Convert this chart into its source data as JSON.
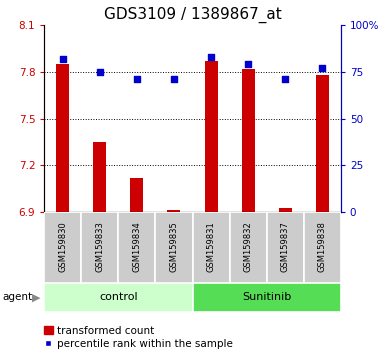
{
  "title": "GDS3109 / 1389867_at",
  "samples": [
    "GSM159830",
    "GSM159833",
    "GSM159834",
    "GSM159835",
    "GSM159831",
    "GSM159832",
    "GSM159837",
    "GSM159838"
  ],
  "transformed_count": [
    7.85,
    7.35,
    7.12,
    6.915,
    7.87,
    7.82,
    6.925,
    7.78
  ],
  "percentile_rank": [
    82,
    75,
    71,
    71,
    83,
    79,
    71,
    77
  ],
  "bar_color": "#cc0000",
  "dot_color": "#0000cc",
  "bar_bottom": 6.9,
  "ylim_left": [
    6.9,
    8.1
  ],
  "ylim_right": [
    0,
    100
  ],
  "yticks_left": [
    6.9,
    7.2,
    7.5,
    7.8,
    8.1
  ],
  "ytick_labels_left": [
    "6.9",
    "7.2",
    "7.5",
    "7.8",
    "8.1"
  ],
  "yticks_right": [
    0,
    25,
    50,
    75,
    100
  ],
  "ytick_labels_right": [
    "0",
    "25",
    "50",
    "75",
    "100%"
  ],
  "hlines": [
    7.2,
    7.5,
    7.8
  ],
  "groups": [
    {
      "label": "control",
      "indices": [
        0,
        1,
        2,
        3
      ],
      "color": "#ccffcc"
    },
    {
      "label": "Sunitinib",
      "indices": [
        4,
        5,
        6,
        7
      ],
      "color": "#55dd55"
    }
  ],
  "group_row_label": "agent",
  "tick_bg_color": "#cccccc",
  "legend_bar_label": "transformed count",
  "legend_dot_label": "percentile rank within the sample",
  "title_fontsize": 11,
  "tick_fontsize": 7.5,
  "legend_fontsize": 7.5,
  "sample_fontsize": 6.0,
  "group_fontsize": 8.0
}
